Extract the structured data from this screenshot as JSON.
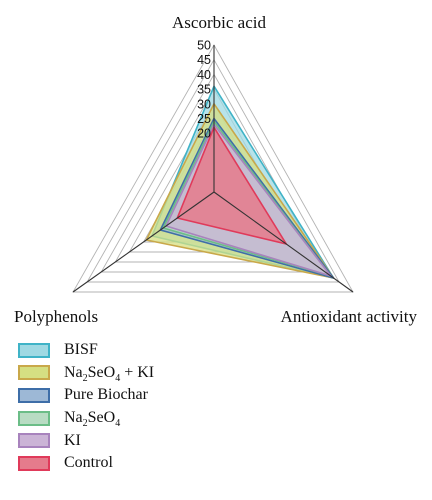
{
  "chart_data": {
    "type": "radar",
    "axes": [
      "Ascorbic acid",
      "Antioxidant activity",
      "Polyphenols"
    ],
    "rmax": 50,
    "ticks": [
      "50",
      "45",
      "40",
      "35",
      "30",
      "25",
      "20"
    ],
    "series": [
      {
        "name": "BISF",
        "values": [
          36,
          43,
          22
        ],
        "fill": "#9fd9e3",
        "stroke": "#3fb3c7"
      },
      {
        "name": "Na2SeO4 + KI",
        "values": [
          30,
          43,
          24
        ],
        "fill": "#d5df82",
        "stroke": "#c9a84a"
      },
      {
        "name": "Pure Biochar",
        "values": [
          25,
          43,
          19
        ],
        "fill": "#9db8d6",
        "stroke": "#3e6ea8"
      },
      {
        "name": "Na2SeO4",
        "values": [
          24,
          42,
          18
        ],
        "fill": "#b8dcc3",
        "stroke": "#6bbd87"
      },
      {
        "name": "KI",
        "values": [
          23,
          42,
          17
        ],
        "fill": "#cbb4d6",
        "stroke": "#a883bd"
      },
      {
        "name": "Control",
        "values": [
          22,
          26,
          13
        ],
        "fill": "#e57b8c",
        "stroke": "#e03a5a"
      }
    ]
  }
}
